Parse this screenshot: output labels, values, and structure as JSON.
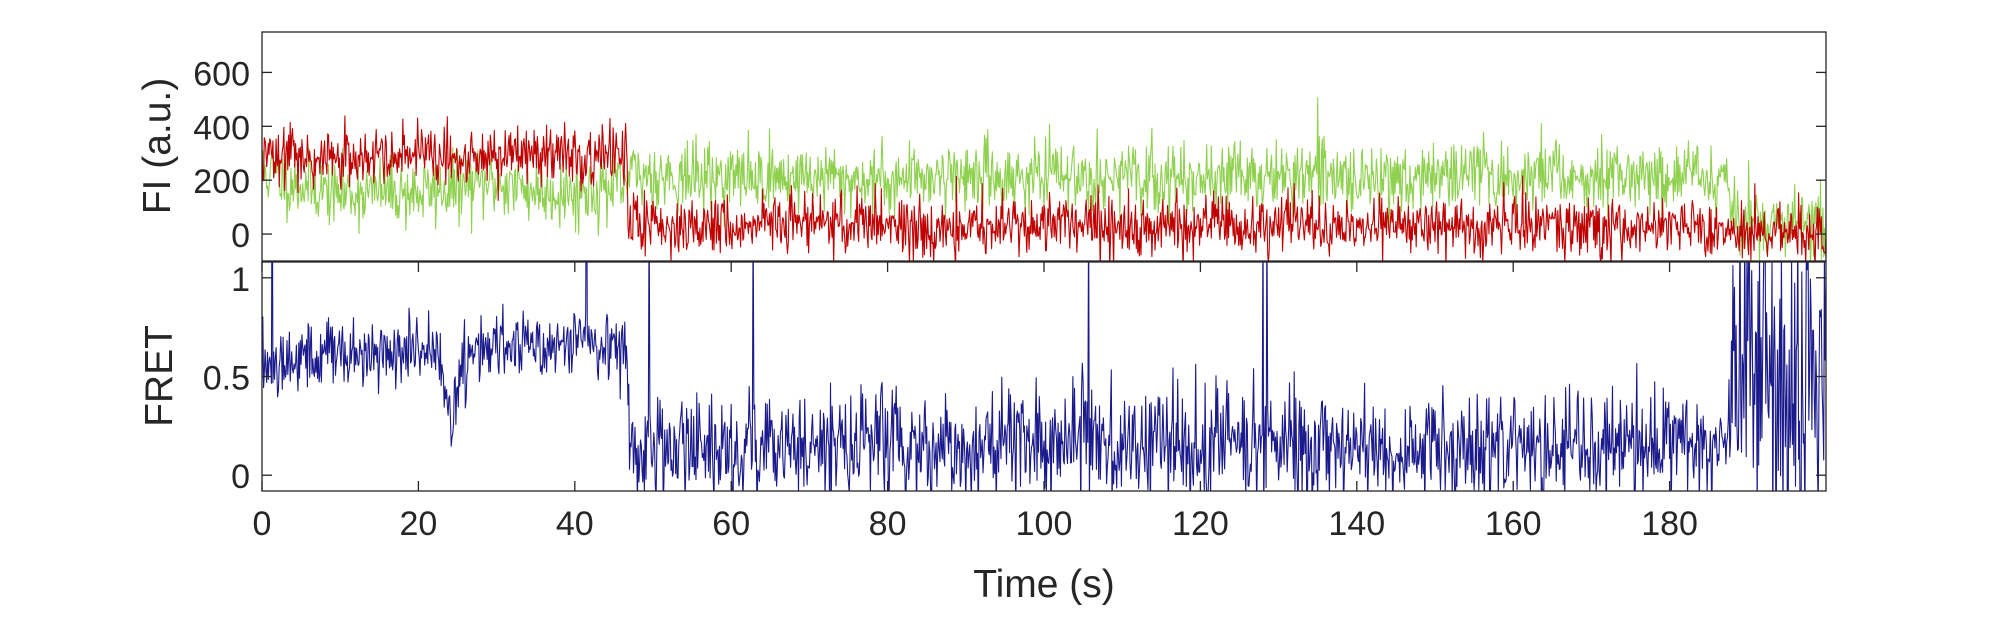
{
  "chart_data": [
    {
      "type": "line",
      "title": "",
      "xlabel": "",
      "ylabel": "FI (a.u.)",
      "xlim": [
        0,
        200
      ],
      "ylim": [
        -100,
        750
      ],
      "x_ticks": [],
      "y_ticks": [
        0,
        200,
        400,
        600
      ],
      "y_tick_labels": [
        "0",
        "200",
        "400",
        "600"
      ],
      "grid": false,
      "series": [
        {
          "color": "#8fd14f",
          "x": [
            0,
            5,
            10,
            15,
            20,
            25,
            30,
            35,
            40,
            45,
            46.5,
            47,
            50,
            55,
            60,
            65,
            70,
            75,
            80,
            85,
            90,
            95,
            100,
            105,
            110,
            115,
            120,
            125,
            130,
            135,
            140,
            145,
            150,
            155,
            160,
            165,
            170,
            175,
            180,
            185,
            187.5,
            188,
            190,
            195,
            200
          ],
          "values": [
            230,
            180,
            150,
            160,
            150,
            170,
            190,
            160,
            150,
            170,
            170,
            220,
            220,
            210,
            215,
            210,
            215,
            200,
            200,
            220,
            220,
            210,
            215,
            220,
            210,
            200,
            215,
            220,
            210,
            220,
            205,
            210,
            215,
            220,
            215,
            225,
            210,
            225,
            220,
            215,
            220,
            60,
            40,
            40,
            40
          ]
        },
        {
          "color": "#c00000",
          "x": [
            0,
            5,
            10,
            15,
            20,
            25,
            30,
            35,
            40,
            45,
            46.5,
            47,
            50,
            55,
            60,
            65,
            70,
            75,
            80,
            85,
            90,
            95,
            100,
            105,
            110,
            115,
            120,
            125,
            130,
            135,
            140,
            145,
            150,
            155,
            160,
            165,
            170,
            175,
            180,
            185,
            187.5,
            188,
            190,
            195,
            200
          ],
          "values": [
            300,
            280,
            290,
            270,
            300,
            260,
            300,
            310,
            280,
            290,
            260,
            30,
            50,
            30,
            20,
            40,
            50,
            30,
            40,
            20,
            30,
            40,
            30,
            40,
            30,
            20,
            30,
            30,
            40,
            30,
            20,
            30,
            30,
            20,
            30,
            30,
            30,
            20,
            30,
            20,
            30,
            10,
            10,
            10,
            10
          ]
        }
      ]
    },
    {
      "type": "line",
      "title": "",
      "xlabel": "Time (s)",
      "ylabel": "FRET",
      "xlim": [
        0,
        200
      ],
      "ylim": [
        -0.08,
        1.08
      ],
      "x_ticks": [
        0,
        20,
        40,
        60,
        80,
        100,
        120,
        140,
        160,
        180
      ],
      "x_tick_labels": [
        "0",
        "20",
        "40",
        "60",
        "80",
        "100",
        "120",
        "140",
        "160",
        "180"
      ],
      "y_ticks": [
        0,
        0.5,
        1
      ],
      "y_tick_labels": [
        "0",
        "0.5",
        "1"
      ],
      "grid": false,
      "series": [
        {
          "color": "#1a1a8c",
          "x": [
            0,
            5,
            10,
            15,
            20,
            23,
            24,
            25,
            26,
            30,
            35,
            40,
            45,
            46.5,
            47,
            50,
            55,
            60,
            65,
            70,
            75,
            80,
            85,
            90,
            95,
            100,
            105,
            110,
            115,
            120,
            125,
            130,
            135,
            140,
            145,
            150,
            155,
            160,
            165,
            170,
            175,
            180,
            185,
            187.5,
            188,
            190,
            195,
            200
          ],
          "values": [
            0.58,
            0.6,
            0.62,
            0.6,
            0.64,
            0.55,
            0.3,
            0.45,
            0.62,
            0.66,
            0.67,
            0.68,
            0.66,
            0.64,
            0.16,
            0.18,
            0.16,
            0.14,
            0.16,
            0.15,
            0.16,
            0.18,
            0.14,
            0.15,
            0.16,
            0.15,
            0.17,
            0.16,
            0.15,
            0.14,
            0.16,
            0.15,
            0.14,
            0.15,
            0.13,
            0.14,
            0.15,
            0.14,
            0.16,
            0.13,
            0.14,
            0.13,
            0.15,
            0.14,
            0.5,
            0.55,
            0.5,
            0.5
          ]
        }
      ]
    }
  ]
}
